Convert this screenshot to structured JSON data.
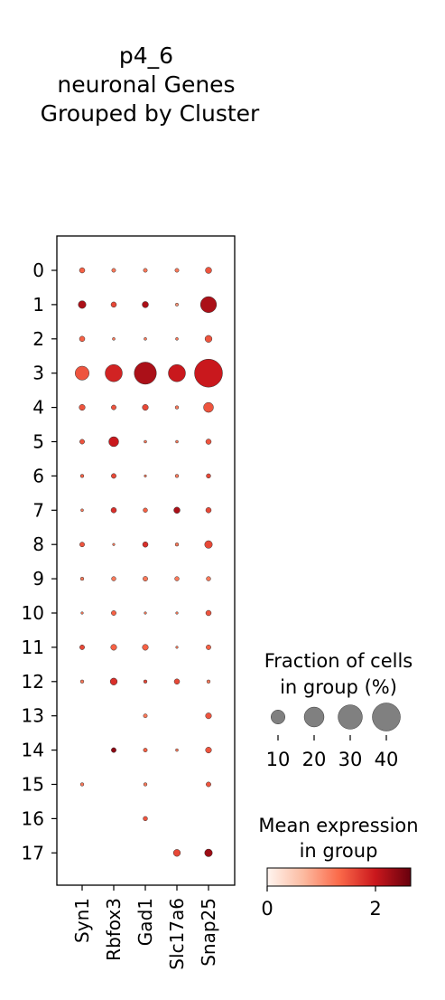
{
  "chart_data": {
    "type": "dotplot",
    "title": [
      "p4_6",
      "neuronal Genes",
      "Grouped by Cluster"
    ],
    "genes": [
      "Syn1",
      "Rbfox3",
      "Gad1",
      "Slc17a6",
      "Snap25"
    ],
    "groups": [
      "0",
      "1",
      "2",
      "3",
      "4",
      "5",
      "6",
      "7",
      "8",
      "9",
      "10",
      "11",
      "12",
      "13",
      "14",
      "15",
      "16",
      "17"
    ],
    "fraction_pct": [
      [
        1.5,
        0.8,
        0.8,
        0.8,
        2.0
      ],
      [
        3.0,
        1.5,
        2.0,
        0.5,
        13.0
      ],
      [
        1.5,
        0.4,
        0.4,
        0.4,
        2.5
      ],
      [
        10.0,
        15.0,
        25.0,
        15.0,
        40.0
      ],
      [
        1.8,
        1.2,
        1.8,
        0.6,
        5.0
      ],
      [
        1.2,
        5.0,
        0.4,
        0.4,
        1.5
      ],
      [
        0.6,
        1.2,
        0.3,
        0.6,
        1.0
      ],
      [
        0.4,
        1.5,
        1.0,
        2.0,
        1.5
      ],
      [
        1.2,
        0.3,
        1.5,
        0.6,
        3.0
      ],
      [
        0.6,
        1.0,
        1.2,
        1.0,
        1.0
      ],
      [
        0.3,
        1.2,
        0.3,
        0.3,
        1.5
      ],
      [
        1.2,
        1.8,
        1.8,
        0.3,
        1.2
      ],
      [
        0.6,
        2.5,
        0.6,
        1.5,
        0.6
      ],
      [
        null,
        null,
        0.8,
        null,
        1.8
      ],
      [
        null,
        1.2,
        0.8,
        0.4,
        1.8
      ],
      [
        0.6,
        null,
        0.6,
        null,
        1.2
      ],
      [
        null,
        null,
        1.0,
        null,
        null
      ],
      [
        null,
        null,
        null,
        2.5,
        3.0
      ]
    ],
    "mean_expression": [
      [
        1.4,
        1.2,
        1.2,
        1.2,
        1.5
      ],
      [
        2.2,
        1.6,
        2.2,
        1.0,
        2.2
      ],
      [
        1.4,
        1.2,
        1.2,
        1.2,
        1.5
      ],
      [
        1.5,
        1.9,
        2.2,
        2.0,
        2.0
      ],
      [
        1.5,
        1.5,
        1.6,
        1.2,
        1.5
      ],
      [
        1.5,
        2.0,
        1.2,
        1.2,
        1.5
      ],
      [
        1.4,
        1.6,
        1.2,
        1.2,
        1.6
      ],
      [
        1.2,
        1.8,
        1.4,
        2.2,
        1.6
      ],
      [
        1.5,
        1.2,
        1.8,
        1.2,
        1.6
      ],
      [
        1.2,
        1.2,
        1.2,
        1.2,
        1.2
      ],
      [
        1.2,
        1.4,
        1.2,
        1.2,
        1.5
      ],
      [
        1.6,
        1.4,
        1.4,
        1.2,
        1.4
      ],
      [
        1.2,
        1.8,
        1.6,
        1.6,
        1.2
      ],
      [
        null,
        null,
        1.2,
        null,
        1.5
      ],
      [
        null,
        2.4,
        1.4,
        1.2,
        1.5
      ],
      [
        1.2,
        null,
        1.2,
        null,
        1.5
      ],
      [
        null,
        null,
        1.5,
        null,
        null
      ],
      [
        null,
        null,
        null,
        1.6,
        2.3
      ]
    ],
    "size_legend": {
      "title": [
        "Fraction of cells",
        "in group (%)"
      ],
      "values": [
        10,
        20,
        30,
        40
      ],
      "labels": [
        "10",
        "20",
        "30",
        "40"
      ]
    },
    "color_legend": {
      "title": [
        "Mean expression",
        "in group"
      ],
      "range": [
        0,
        2.65
      ],
      "ticks": [
        0,
        2
      ],
      "tick_labels": [
        "0",
        "2"
      ],
      "colormap": "Reds",
      "colors": [
        "#fff5f0",
        "#fcbba1",
        "#fb6a4a",
        "#cb181d",
        "#67000d"
      ]
    },
    "dot_edge_color": "#333333",
    "legend_dot_color": "#808080",
    "grid": false
  }
}
